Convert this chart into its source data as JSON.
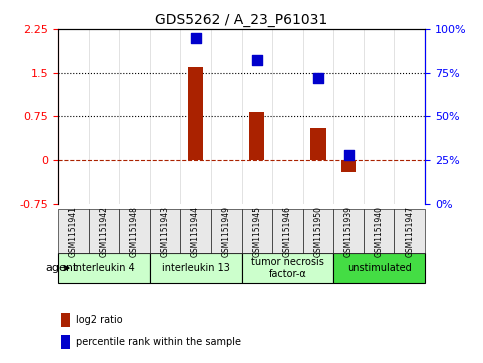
{
  "title": "GDS5262 / A_23_P61031",
  "samples": [
    "GSM1151941",
    "GSM1151942",
    "GSM1151948",
    "GSM1151943",
    "GSM1151944",
    "GSM1151949",
    "GSM1151945",
    "GSM1151946",
    "GSM1151950",
    "GSM1151939",
    "GSM1151940",
    "GSM1151947"
  ],
  "log2_ratio": [
    0,
    0,
    0,
    0,
    1.6,
    0,
    0.82,
    0,
    0.55,
    -0.2,
    0,
    0
  ],
  "percentile_rank": [
    null,
    null,
    null,
    null,
    95,
    null,
    82,
    null,
    72,
    28,
    null,
    null
  ],
  "ylim_left": [
    -0.75,
    2.25
  ],
  "ylim_right": [
    0,
    100
  ],
  "yticks_left": [
    -0.75,
    0,
    0.75,
    1.5,
    2.25
  ],
  "yticks_right": [
    0,
    25,
    50,
    75,
    100
  ],
  "ytick_labels_left": [
    "-0.75",
    "0",
    "0.75",
    "1.5",
    "2.25"
  ],
  "ytick_labels_right": [
    "0%",
    "25%",
    "50%",
    "75%",
    "100%"
  ],
  "hlines_dotted": [
    0.75,
    1.5
  ],
  "hline_dashed": 0,
  "groups": [
    {
      "label": "interleukin 4",
      "start": 0,
      "end": 3,
      "color": "#ccffcc"
    },
    {
      "label": "interleukin 13",
      "start": 3,
      "end": 6,
      "color": "#ccffcc"
    },
    {
      "label": "tumor necrosis\nfactor-α",
      "start": 6,
      "end": 9,
      "color": "#ccffcc"
    },
    {
      "label": "unstimulated",
      "start": 9,
      "end": 12,
      "color": "#44dd44"
    }
  ],
  "bar_color": "#aa2200",
  "dot_color": "#0000cc",
  "bar_width": 0.5,
  "dot_size": 60,
  "grid_bg": "#e8e8e8",
  "agent_label": "agent",
  "legend_log2": "log2 ratio",
  "legend_pct": "percentile rank within the sample"
}
